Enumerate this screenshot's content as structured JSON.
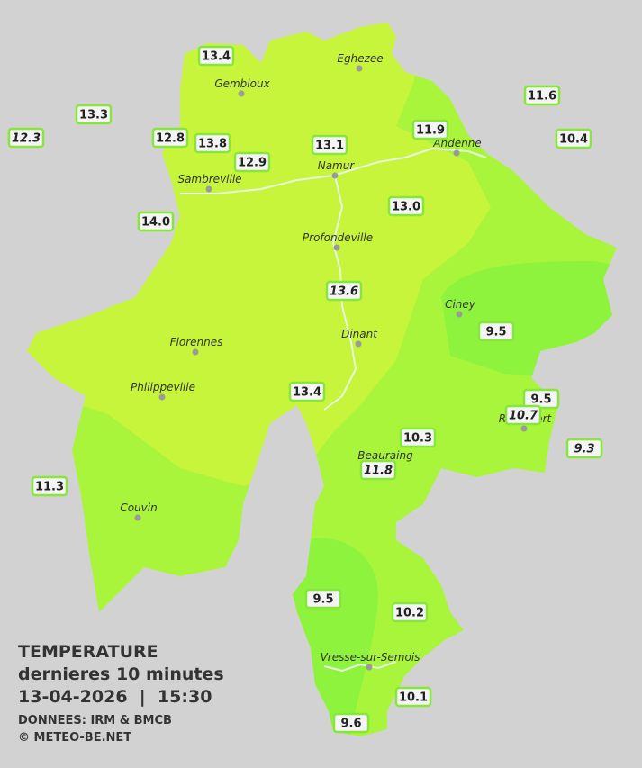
{
  "legend": {
    "title": "TEMPERATURE",
    "subtitle": "dernieres 10 minutes",
    "datetime": "13-04-2026  |  15:30",
    "source": "DONNEES: IRM & BMCB",
    "copyright": "© METEO-BE.NET"
  },
  "towns": [
    "Eghezee",
    "Gembloux",
    "Andenne",
    "Namur",
    "Sambreville",
    "Profondeville",
    "Ciney",
    "Dinant",
    "Florennes",
    "Philippeville",
    "Rochefort",
    "Beauraing",
    "Couvin",
    "Vresse-sur-Semois"
  ],
  "stations": [
    "13.4",
    "13.3",
    "12.3",
    "11.6",
    "11.9",
    "10.4",
    "12.8",
    "13.8",
    "12.9",
    "13.1",
    "14.0",
    "13.0",
    "13.6",
    "9.5",
    "9.5",
    "10.7",
    "9.3",
    "13.4",
    "10.3",
    "11.8",
    "11.3",
    "9.5",
    "10.2",
    "10.1",
    "9.6"
  ]
}
